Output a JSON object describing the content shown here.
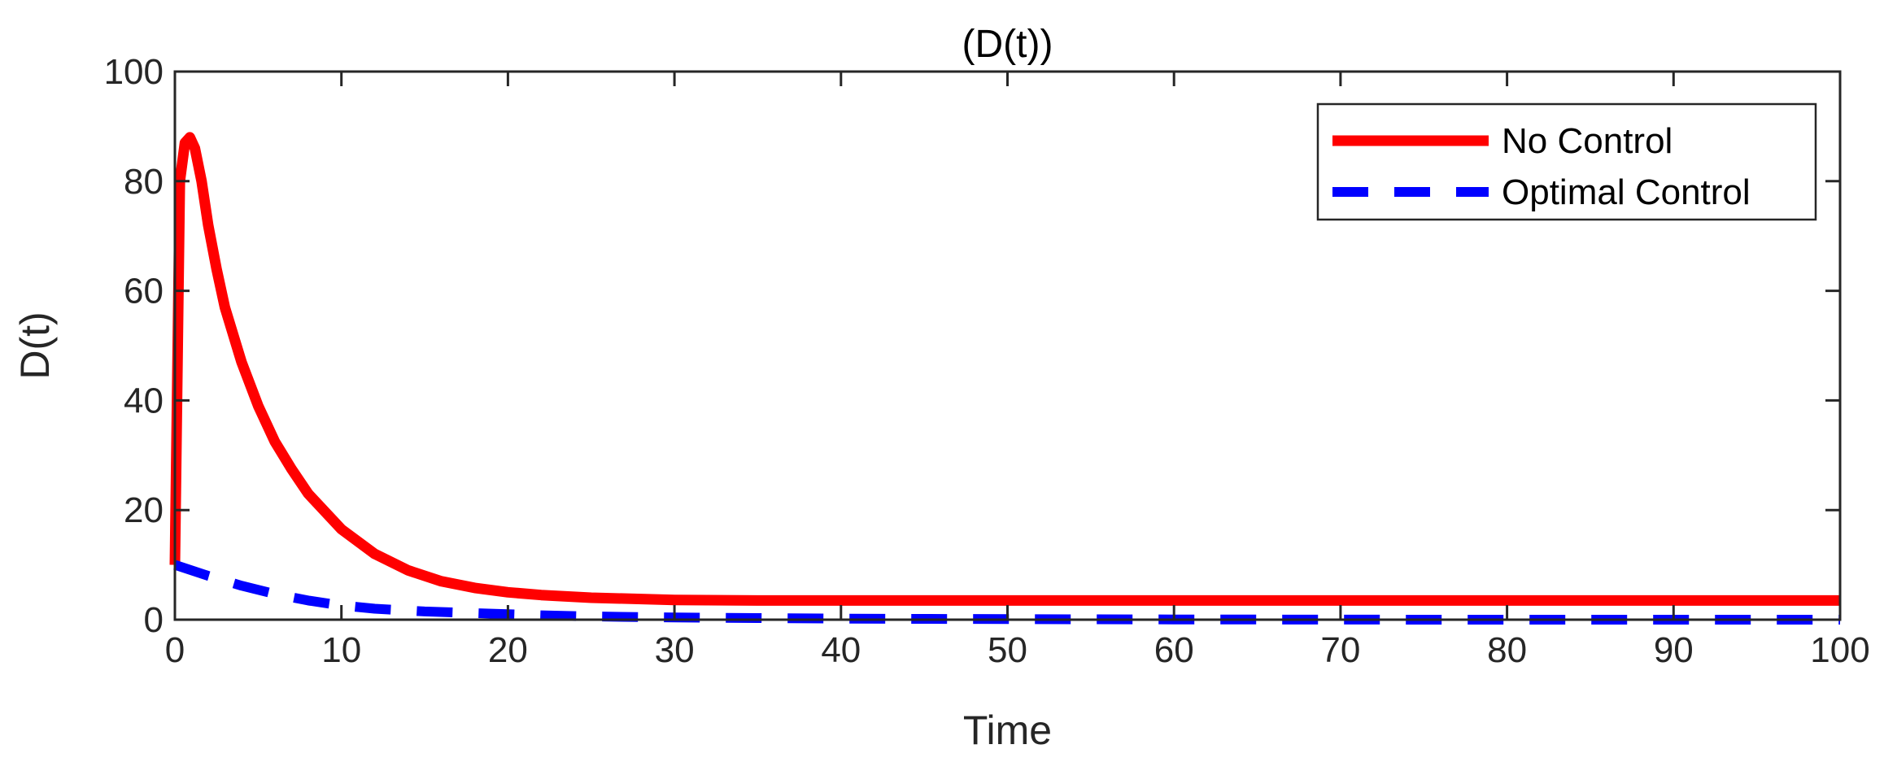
{
  "chart_data": {
    "type": "line",
    "title": "(D(t))",
    "xlabel": "Time",
    "ylabel": "D(t)",
    "xlim": [
      0,
      100
    ],
    "ylim": [
      0,
      100
    ],
    "xticks": [
      0,
      10,
      20,
      30,
      40,
      50,
      60,
      70,
      80,
      90,
      100
    ],
    "yticks": [
      0,
      20,
      40,
      60,
      80,
      100
    ],
    "grid": false,
    "legend_position": "top-right",
    "series": [
      {
        "name": "No Control",
        "color": "#ff0000",
        "style": "solid",
        "x": [
          0,
          0.3,
          0.6,
          0.9,
          1.2,
          1.6,
          2,
          2.5,
          3,
          4,
          5,
          6,
          7,
          8,
          10,
          12,
          14,
          16,
          18,
          20,
          22,
          25,
          30,
          35,
          40,
          50,
          60,
          70,
          80,
          90,
          100
        ],
        "y": [
          10,
          80,
          87,
          88,
          86,
          80,
          72,
          64,
          57,
          47,
          39,
          32.5,
          27.5,
          23,
          16.5,
          12,
          9,
          7,
          5.8,
          5,
          4.5,
          4,
          3.6,
          3.5,
          3.5,
          3.5,
          3.5,
          3.5,
          3.5,
          3.5,
          3.5
        ]
      },
      {
        "name": "Optimal Control",
        "color": "#0000ff",
        "style": "dashed",
        "x": [
          0,
          2,
          4,
          6,
          8,
          10,
          12,
          15,
          18,
          20,
          22,
          25,
          30,
          35,
          40,
          50,
          60,
          70,
          80,
          90,
          100
        ],
        "y": [
          10,
          8,
          6.2,
          4.7,
          3.5,
          2.6,
          2,
          1.5,
          1.2,
          1,
          0.8,
          0.6,
          0.4,
          0.3,
          0.2,
          0.1,
          0.05,
          0.02,
          0,
          0,
          0
        ]
      }
    ]
  }
}
